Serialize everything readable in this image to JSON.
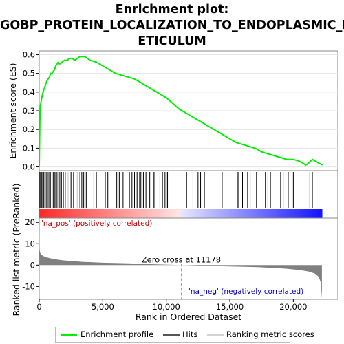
{
  "title_line1": "Enrichment plot:",
  "title_line2": "GOBP_PROTEIN_LOCALIZATION_TO_ENDOPLASMIC_R",
  "title_line3": "ETICULUM",
  "top_ylabel": "Enrichment score (ES)",
  "bottom_ylabel": "Ranked list metric (PreRanked)",
  "xlabel": "Rank in Ordered Dataset",
  "pos_label": "'na_pos' (positively correlated)",
  "neg_label": "'na_neg' (negatively correlated)",
  "zero_cross_label": "Zero cross at 11178",
  "legend": {
    "enrichment": "Enrichment profile",
    "hits": "Hits",
    "ranking": "Ranking metric scores"
  },
  "colors": {
    "enrichment_line": "#00ee00",
    "hits": "#000000",
    "ranking_fill": "#808080",
    "pos_band": "#ff0000",
    "neg_band": "#0000ff"
  },
  "chart_data": [
    {
      "type": "line",
      "name": "enrichment-profile",
      "ylabel": "Enrichment score (ES)",
      "xlim": [
        0,
        23500
      ],
      "ylim": [
        -0.02,
        0.62
      ],
      "yticks": [
        0.0,
        0.1,
        0.2,
        0.3,
        0.4,
        0.5,
        0.6
      ],
      "ytick_labels": [
        "0.0",
        "0.1",
        "0.2",
        "0.3",
        "0.4",
        "0.5",
        "0.6"
      ],
      "x": [
        0,
        50,
        100,
        200,
        300,
        400,
        500,
        600,
        700,
        800,
        900,
        1000,
        1100,
        1200,
        1300,
        1400,
        1500,
        1600,
        1800,
        2000,
        2200,
        2400,
        2600,
        2800,
        3000,
        3200,
        3400,
        3600,
        3800,
        4000,
        4500,
        5000,
        5500,
        6000,
        6500,
        7000,
        7500,
        8000,
        8500,
        9000,
        9500,
        10000,
        10500,
        11000,
        11500,
        12000,
        12500,
        13000,
        13500,
        14000,
        14500,
        15000,
        15500,
        16000,
        16500,
        17000,
        17500,
        18000,
        18500,
        19000,
        19500,
        20000,
        20500,
        21000,
        21200,
        21500,
        22000,
        22300
      ],
      "y": [
        0.0,
        0.25,
        0.33,
        0.37,
        0.4,
        0.42,
        0.44,
        0.46,
        0.47,
        0.48,
        0.5,
        0.5,
        0.51,
        0.52,
        0.54,
        0.55,
        0.56,
        0.55,
        0.56,
        0.57,
        0.57,
        0.58,
        0.58,
        0.57,
        0.58,
        0.59,
        0.59,
        0.59,
        0.58,
        0.57,
        0.56,
        0.54,
        0.52,
        0.5,
        0.49,
        0.48,
        0.47,
        0.45,
        0.43,
        0.41,
        0.39,
        0.37,
        0.34,
        0.31,
        0.29,
        0.27,
        0.25,
        0.23,
        0.21,
        0.19,
        0.17,
        0.15,
        0.13,
        0.12,
        0.11,
        0.1,
        0.08,
        0.07,
        0.06,
        0.05,
        0.04,
        0.04,
        0.03,
        0.01,
        0.02,
        0.04,
        0.02,
        0.01
      ]
    },
    {
      "type": "bar",
      "name": "hits",
      "hit_ranks": [
        50,
        120,
        200,
        280,
        360,
        450,
        550,
        650,
        760,
        880,
        1000,
        1100,
        1200,
        1300,
        1400,
        1500,
        1620,
        1750,
        1900,
        2050,
        2200,
        2350,
        2500,
        2700,
        2900,
        3050,
        3200,
        3350,
        3500,
        3700,
        4300,
        4500,
        5200,
        5400,
        6100,
        6300,
        6600,
        7100,
        7300,
        7500,
        7700,
        7900,
        8000,
        8200,
        8400,
        8700,
        9000,
        9100,
        9500,
        9700,
        9900,
        10000,
        10100,
        11600,
        12100,
        12500,
        12700,
        13000,
        14400,
        15600,
        15700,
        16000,
        16400,
        16600,
        17100,
        17800,
        18000,
        18200,
        19000,
        19200,
        19600,
        20000,
        21300,
        21500
      ]
    },
    {
      "type": "area",
      "name": "ranking-metric",
      "ylabel": "Ranked list metric (PreRanked)",
      "xlabel": "Rank in Ordered Dataset",
      "xlim": [
        0,
        23500
      ],
      "ylim": [
        -16,
        22
      ],
      "yticks": [
        -10,
        0,
        10,
        20
      ],
      "ytick_labels": [
        "-10",
        "0",
        "10",
        "20"
      ],
      "xticks": [
        0,
        5000,
        10000,
        15000,
        20000
      ],
      "xtick_labels": [
        "0",
        "5,000",
        "10,000",
        "15,000",
        "20,000"
      ],
      "x": [
        0,
        30,
        80,
        150,
        300,
        500,
        800,
        1200,
        1800,
        2500,
        3500,
        5000,
        7000,
        9000,
        11178,
        13000,
        15000,
        17000,
        18500,
        19500,
        20500,
        21200,
        21700,
        22000,
        22150,
        22250
      ],
      "y": [
        10.0,
        7.0,
        5.6,
        5.0,
        4.3,
        3.8,
        3.3,
        2.8,
        2.3,
        1.9,
        1.5,
        1.1,
        0.8,
        0.4,
        0.0,
        -0.3,
        -0.6,
        -0.9,
        -1.3,
        -1.7,
        -2.3,
        -3.0,
        -4.0,
        -5.5,
        -8.0,
        -15.5
      ],
      "zero_cross": 11178
    }
  ]
}
